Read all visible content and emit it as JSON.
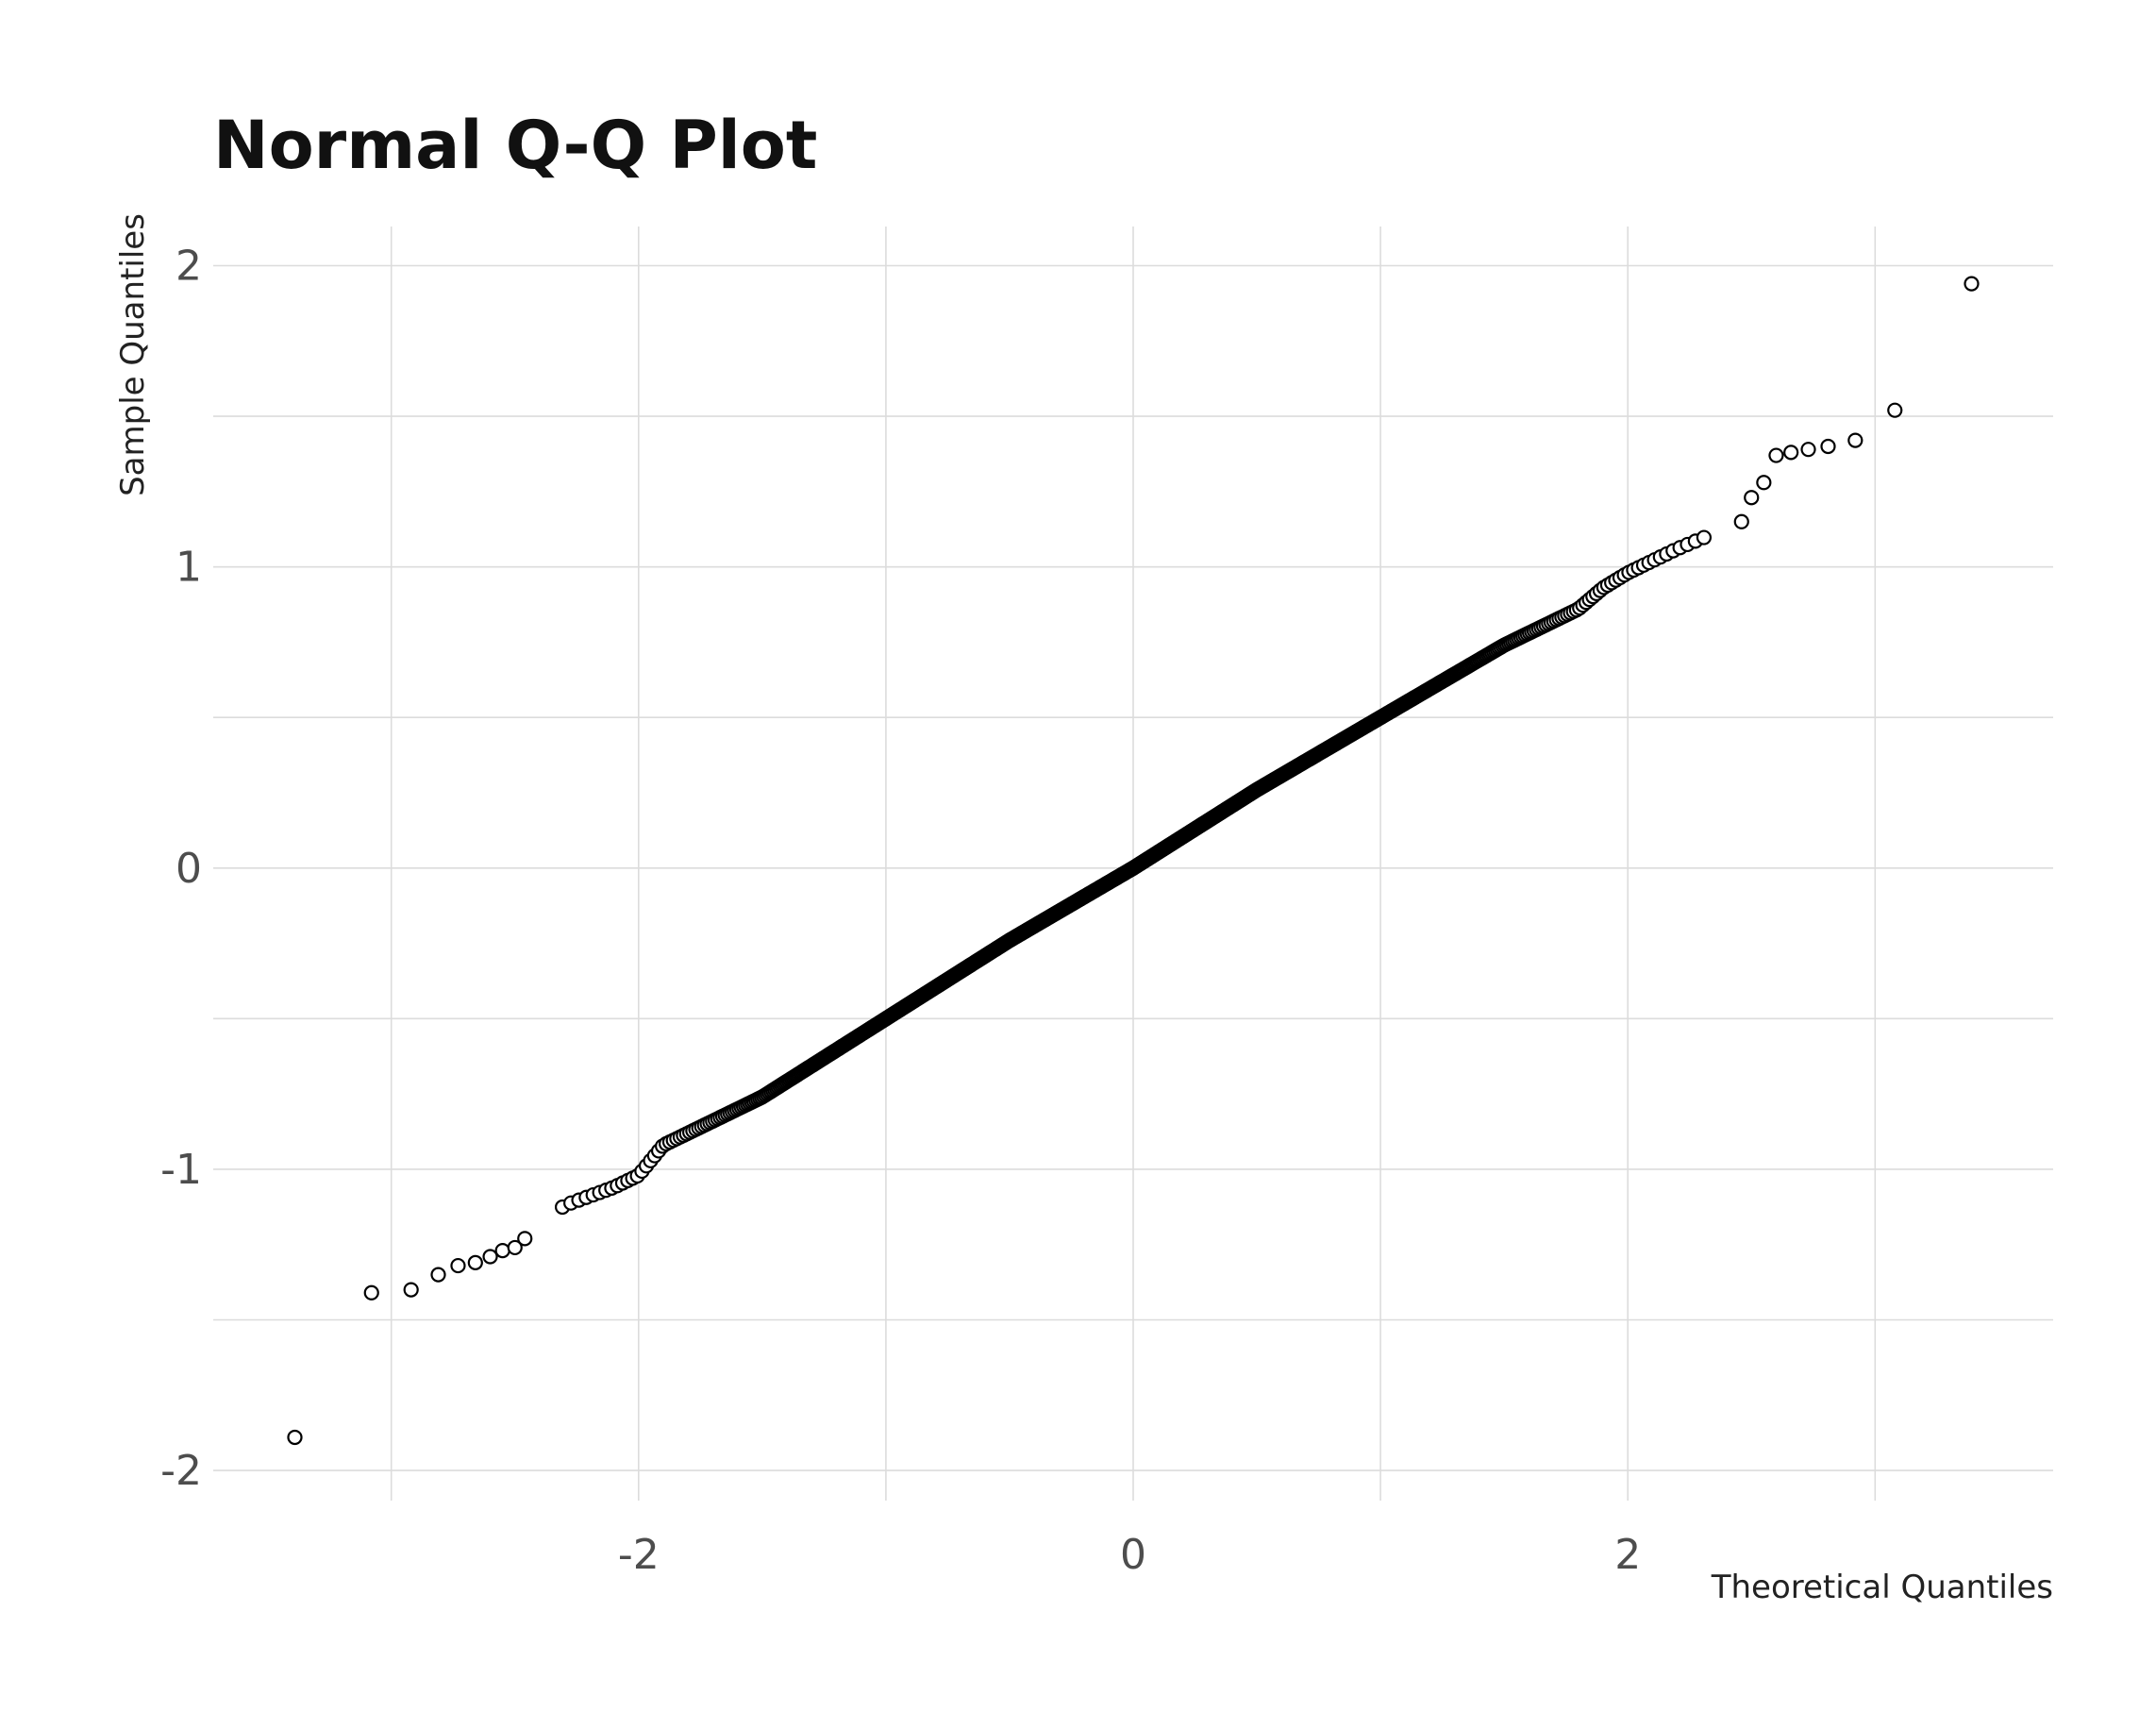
{
  "chart_data": {
    "type": "scatter",
    "title": "Normal Q-Q Plot",
    "xlabel": "Theoretical Quantiles",
    "ylabel": "Sample Quantiles",
    "xlim": [
      -3.72,
      3.72
    ],
    "ylim": [
      -2.1,
      2.13
    ],
    "x_ticks": [
      -2,
      0,
      2
    ],
    "x_tick_labels": [
      "-2",
      "0",
      "2"
    ],
    "x_minor_gridlines": [
      -3,
      -1,
      1,
      3
    ],
    "y_ticks": [
      -2,
      -1,
      0,
      1,
      2
    ],
    "y_tick_labels": [
      "-2",
      "-1",
      "0",
      "1",
      "2"
    ],
    "y_minor_gridlines": [
      -1.5,
      -0.5,
      0.5,
      1.5
    ],
    "grid": true,
    "legend": "none",
    "marker": "open-circle",
    "n_points": 1000,
    "tail_points": [
      {
        "x": -3.39,
        "y": -1.89
      },
      {
        "x": -3.08,
        "y": -1.41
      },
      {
        "x": -2.92,
        "y": -1.4
      },
      {
        "x": -2.81,
        "y": -1.35
      },
      {
        "x": -2.73,
        "y": -1.32
      },
      {
        "x": -2.66,
        "y": -1.31
      },
      {
        "x": -2.6,
        "y": -1.29
      },
      {
        "x": -2.55,
        "y": -1.27
      },
      {
        "x": -2.5,
        "y": -1.26
      },
      {
        "x": -2.46,
        "y": -1.23
      },
      {
        "x": 2.46,
        "y": 1.15
      },
      {
        "x": 2.5,
        "y": 1.23
      },
      {
        "x": 2.55,
        "y": 1.28
      },
      {
        "x": 2.6,
        "y": 1.37
      },
      {
        "x": 2.66,
        "y": 1.38
      },
      {
        "x": 2.73,
        "y": 1.39
      },
      {
        "x": 2.81,
        "y": 1.4
      },
      {
        "x": 2.92,
        "y": 1.42
      },
      {
        "x": 3.08,
        "y": 1.52
      },
      {
        "x": 3.39,
        "y": 1.94
      }
    ],
    "body_trend": {
      "x": [
        -2.46,
        -2.3,
        -2.1,
        -2.0,
        -1.9,
        -1.5,
        -1.0,
        -0.5,
        0.0,
        0.5,
        1.0,
        1.5,
        1.8,
        1.9,
        2.0,
        2.2,
        2.46
      ],
      "y": [
        -1.23,
        -1.12,
        -1.06,
        -1.02,
        -0.92,
        -0.76,
        -0.5,
        -0.24,
        0.0,
        0.26,
        0.5,
        0.74,
        0.86,
        0.93,
        0.98,
        1.06,
        1.15
      ]
    }
  }
}
